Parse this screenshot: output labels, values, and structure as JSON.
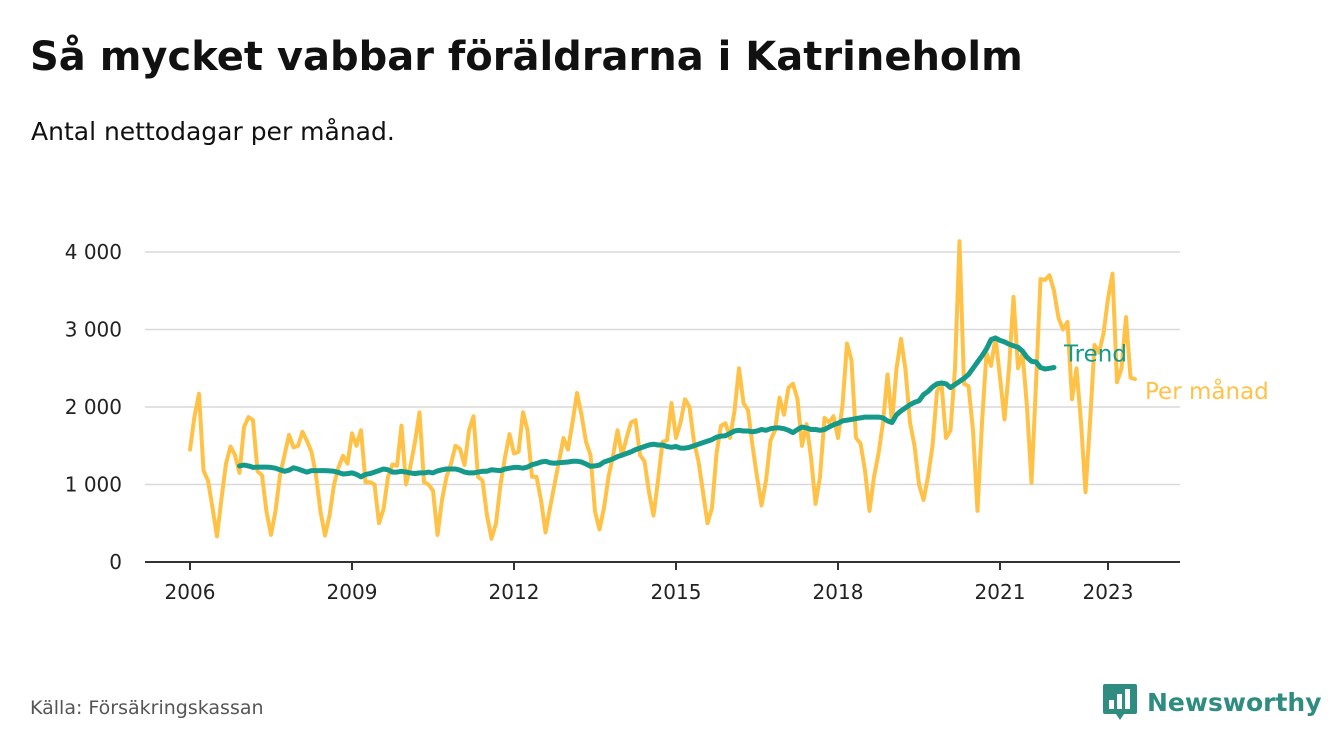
{
  "header": {
    "title": "Så mycket vabbar föräldrarna i Katrineholm",
    "subtitle": "Antal nettodagar per månad."
  },
  "footer": {
    "source": "Källa: Försäkringskassan",
    "brand": "Newsworthy"
  },
  "colors": {
    "trend": "#14998A",
    "monthly": "#FFC247",
    "grid": "#D9D9D9",
    "axis": "#333333",
    "brand": "#2E8C80"
  },
  "icons": {
    "brand_logo": "bar-chart-speech-bubble-icon"
  },
  "chart_data": {
    "type": "line",
    "title": "Så mycket vabbar föräldrarna i Katrineholm",
    "subtitle": "Antal nettodagar per månad.",
    "xlabel": "",
    "ylabel": "",
    "xlim": [
      "2005-03",
      "2024-05"
    ],
    "ylim": [
      0,
      4000
    ],
    "grid": "horizontal",
    "legend": "direct labels at right end of lines",
    "x_ticks": [
      "2006",
      "2009",
      "2012",
      "2015",
      "2018",
      "2021",
      "2023"
    ],
    "y_ticks": [
      {
        "value": 0,
        "label": "0"
      },
      {
        "value": 1000,
        "label": "1 000"
      },
      {
        "value": 2000,
        "label": "2 000"
      },
      {
        "value": 3000,
        "label": "3 000"
      },
      {
        "value": 4000,
        "label": "4 000"
      }
    ],
    "series": [
      {
        "name": "Per månad",
        "color": "#FFC247",
        "start": "2006-01",
        "values": [
          1450,
          1880,
          2170,
          1180,
          1050,
          700,
          330,
          820,
          1270,
          1490,
          1380,
          1150,
          1740,
          1870,
          1830,
          1170,
          1120,
          650,
          350,
          660,
          1120,
          1380,
          1640,
          1480,
          1500,
          1680,
          1560,
          1420,
          1120,
          650,
          340,
          600,
          1000,
          1220,
          1370,
          1270,
          1660,
          1500,
          1700,
          1030,
          1030,
          1000,
          500,
          680,
          1100,
          1260,
          1240,
          1760,
          1000,
          1240,
          1550,
          1930,
          1030,
          1000,
          920,
          350,
          800,
          1100,
          1270,
          1500,
          1460,
          1250,
          1700,
          1880,
          1100,
          1050,
          600,
          300,
          500,
          1000,
          1350,
          1650,
          1400,
          1420,
          1930,
          1700,
          1100,
          1100,
          800,
          380,
          700,
          1000,
          1300,
          1600,
          1450,
          1800,
          2180,
          1900,
          1550,
          1380,
          650,
          420,
          700,
          1100,
          1370,
          1700,
          1370,
          1600,
          1800,
          1830,
          1380,
          1300,
          900,
          600,
          1050,
          1550,
          1570,
          2050,
          1600,
          1800,
          2100,
          2000,
          1550,
          1300,
          900,
          500,
          700,
          1400,
          1760,
          1790,
          1600,
          1950,
          2500,
          2050,
          1960,
          1500,
          1100,
          730,
          1050,
          1570,
          1700,
          2120,
          1900,
          2250,
          2300,
          2100,
          1500,
          1780,
          1350,
          750,
          1100,
          1860,
          1800,
          1880,
          1600,
          2020,
          2820,
          2600,
          1600,
          1530,
          1180,
          660,
          1100,
          1400,
          1800,
          2420,
          1800,
          2500,
          2880,
          2480,
          1800,
          1500,
          1000,
          800,
          1100,
          1500,
          2200,
          2300,
          1600,
          1700,
          2500,
          4140,
          2300,
          2270,
          1700,
          660,
          1800,
          2700,
          2530,
          2900,
          2380,
          1840,
          2500,
          3420,
          2500,
          2700,
          2000,
          1020,
          2300,
          3650,
          3640,
          3700,
          3500,
          3150,
          3000,
          3100,
          2100,
          2500,
          1800,
          900,
          1800,
          2800,
          2700,
          2950,
          3400,
          3720,
          2320,
          2500,
          3160,
          2380,
          2360
        ],
        "end_label": "Per månad"
      },
      {
        "name": "Trend",
        "color": "#14998A",
        "start": "2006-12",
        "values": [
          1240,
          1250,
          1240,
          1220,
          1225,
          1225,
          1225,
          1220,
          1210,
          1190,
          1170,
          1185,
          1215,
          1200,
          1180,
          1160,
          1180,
          1180,
          1180,
          1180,
          1175,
          1170,
          1155,
          1135,
          1140,
          1150,
          1130,
          1100,
          1130,
          1140,
          1160,
          1180,
          1200,
          1190,
          1160,
          1160,
          1170,
          1160,
          1150,
          1140,
          1150,
          1150,
          1160,
          1150,
          1175,
          1190,
          1200,
          1200,
          1200,
          1185,
          1160,
          1150,
          1150,
          1160,
          1170,
          1170,
          1190,
          1185,
          1180,
          1200,
          1210,
          1220,
          1220,
          1210,
          1225,
          1255,
          1270,
          1290,
          1300,
          1280,
          1275,
          1280,
          1285,
          1290,
          1300,
          1300,
          1290,
          1265,
          1235,
          1240,
          1250,
          1290,
          1310,
          1330,
          1360,
          1380,
          1400,
          1420,
          1450,
          1470,
          1490,
          1510,
          1520,
          1510,
          1510,
          1490,
          1480,
          1490,
          1470,
          1470,
          1480,
          1500,
          1520,
          1540,
          1560,
          1580,
          1610,
          1625,
          1630,
          1660,
          1690,
          1700,
          1690,
          1690,
          1680,
          1690,
          1710,
          1700,
          1720,
          1730,
          1730,
          1720,
          1700,
          1670,
          1710,
          1740,
          1730,
          1710,
          1710,
          1700,
          1710,
          1740,
          1770,
          1790,
          1820,
          1830,
          1840,
          1850,
          1860,
          1870,
          1870,
          1870,
          1870,
          1860,
          1820,
          1800,
          1900,
          1950,
          1990,
          2030,
          2060,
          2080,
          2160,
          2200,
          2260,
          2300,
          2310,
          2300,
          2250,
          2290,
          2330,
          2370,
          2420,
          2500,
          2580,
          2660,
          2750,
          2870,
          2890,
          2860,
          2840,
          2810,
          2790,
          2770,
          2720,
          2640,
          2590,
          2580,
          2510,
          2490,
          2500,
          2510
        ],
        "end_label": "Trend"
      }
    ]
  }
}
